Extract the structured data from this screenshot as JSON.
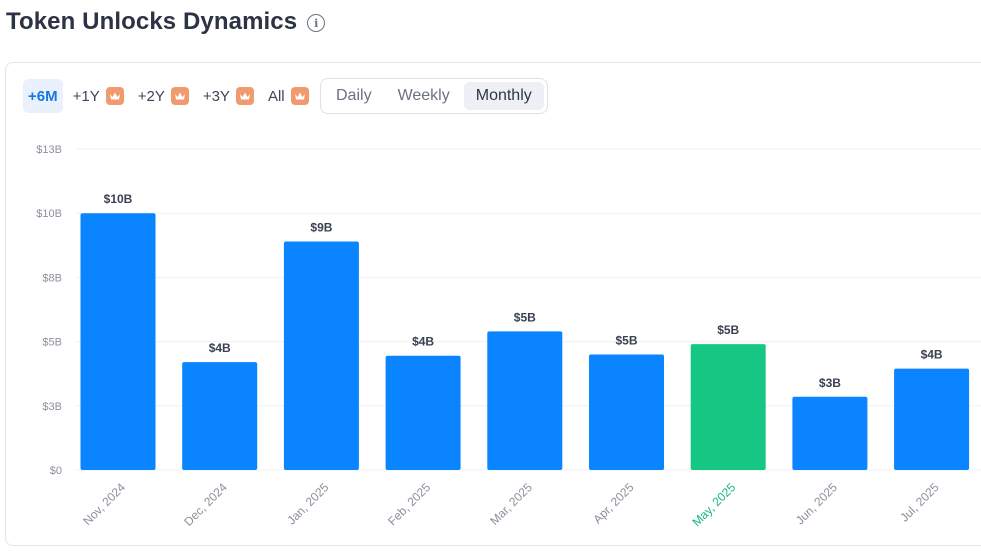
{
  "header": {
    "title": "Token Unlocks Dynamics",
    "info_icon": "info-icon"
  },
  "range_selector": [
    {
      "label": "+6M",
      "active": true,
      "premium": false
    },
    {
      "label": "+1Y",
      "active": false,
      "premium": true
    },
    {
      "label": "+2Y",
      "active": false,
      "premium": true
    },
    {
      "label": "+3Y",
      "active": false,
      "premium": true
    },
    {
      "label": "All",
      "active": false,
      "premium": true
    }
  ],
  "period_selector": [
    {
      "label": "Daily",
      "active": false
    },
    {
      "label": "Weekly",
      "active": false
    },
    {
      "label": "Monthly",
      "active": true
    }
  ],
  "colors": {
    "bar": "#0a84ff",
    "highlight_bar": "#16c784",
    "highlight_label": "#16b979",
    "crown_badge": "#f09a6d",
    "gridline": "#eef0f3"
  },
  "chart_data": {
    "type": "bar",
    "categories": [
      "Nov, 2024",
      "Dec, 2024",
      "Jan, 2025",
      "Feb, 2025",
      "Mar, 2025",
      "Apr, 2025",
      "May, 2025",
      "Jun, 2025",
      "Jul, 2025"
    ],
    "values": [
      10.0,
      4.2,
      8.9,
      4.45,
      5.4,
      4.5,
      4.9,
      2.85,
      3.95
    ],
    "data_labels": [
      "$10B",
      "$4B",
      "$9B",
      "$4B",
      "$5B",
      "$5B",
      "$5B",
      "$3B",
      "$4B"
    ],
    "highlight_category": "May, 2025",
    "y_ticks": [
      0,
      2.5,
      5,
      7.5,
      10,
      12.5
    ],
    "y_tick_labels": [
      "$0",
      "$3B",
      "$5B",
      "$8B",
      "$10B",
      "$13B"
    ],
    "ylim": [
      0,
      12.5
    ],
    "grid": true,
    "title": "",
    "xlabel": "",
    "ylabel": ""
  }
}
